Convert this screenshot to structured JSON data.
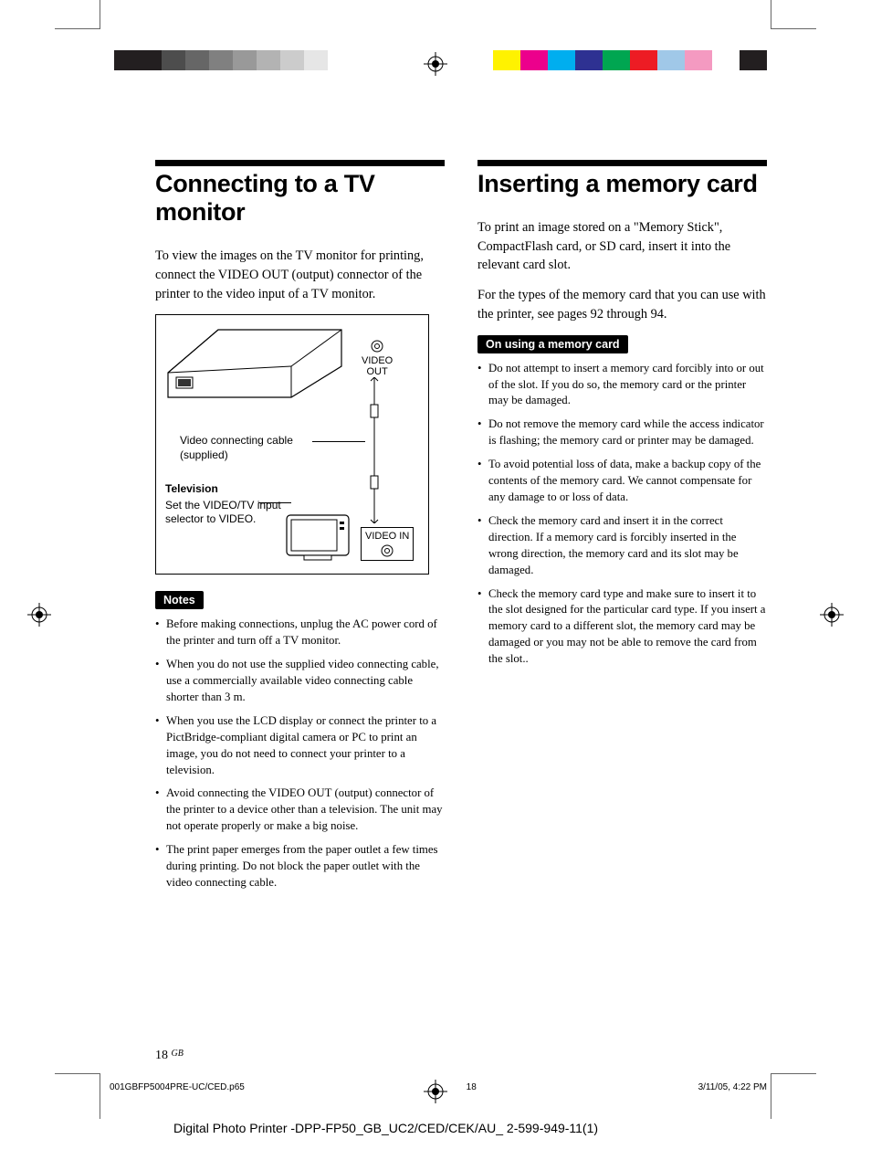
{
  "colorbar_left": [
    "#231f20",
    "#231f20",
    "#4d4d4d",
    "#666666",
    "#808080",
    "#999999",
    "#b3b3b3",
    "#cccccc",
    "#e6e6e6",
    "#ffffff"
  ],
  "colorbar_right": [
    "#fff200",
    "#ec008c",
    "#00aeef",
    "#2e3192",
    "#00a651",
    "#ed1c24",
    "#a0c8e8",
    "#f49ac1",
    "#ffffff",
    "#231f20"
  ],
  "left": {
    "title": "Connecting to a TV monitor",
    "intro": "To view the images on the TV monitor for printing, connect the VIDEO OUT (output) connector of the printer to the video input of a TV monitor.",
    "diagram": {
      "video_out": "VIDEO\nOUT",
      "cable_label": "Video connecting cable\n(supplied)",
      "tv_bold": "Television",
      "tv_text": "Set the VIDEO/TV input selector to VIDEO.",
      "video_in": "VIDEO IN"
    },
    "notes_label": "Notes",
    "notes": [
      "Before making connections, unplug the AC power cord of the printer and turn off a TV monitor.",
      "When you do not use the supplied video connecting cable, use a commercially available video connecting cable shorter than 3 m.",
      "When you use the LCD display or connect the printer to a PictBridge-compliant digital camera or PC to print an image, you do not need to connect your printer to a television.",
      "Avoid connecting the VIDEO OUT (output) connector of the printer to a device other than a television.  The unit may not operate properly or make a big noise.",
      "The print paper emerges from the paper outlet a few times during printing.  Do not block the paper outlet with the video connecting cable."
    ]
  },
  "right": {
    "title": "Inserting a memory card",
    "intro1": "To print an image stored on a \"Memory Stick\", CompactFlash card, or SD card, insert it into the relevant card slot.",
    "intro2": "For the types of the memory card that you can use with the printer, see pages 92 through 94.",
    "notes_label": "On using a memory card",
    "notes": [
      "Do not attempt to insert a memory card forcibly into or out of the slot.  If you do so, the memory card or the printer may be damaged.",
      "Do not remove the memory card while the access indicator is flashing; the memory card or printer may be damaged.",
      "To avoid potential loss of data, make a backup copy of the contents of the memory card.  We cannot compensate for any damage to or loss of data.",
      "Check the memory card and insert it in the correct direction. If a memory card is forcibly inserted in the wrong direction, the memory card and its slot may be damaged.",
      "Check the memory card type and make sure to insert it to the slot designed for the particular card type. If you insert a memory card to a different slot, the memory card may be damaged or you may not be able to remove the card from the slot.."
    ]
  },
  "page_number": "18",
  "page_gb": "GB",
  "footer": {
    "file": "001GBFP5004PRE-UC/CED.p65",
    "page": "18",
    "date": "3/11/05, 4:22 PM"
  },
  "bottom_line": "Digital Photo Printer -DPP-FP50_GB_UC2/CED/CEK/AU_ 2-599-949-11(1)"
}
